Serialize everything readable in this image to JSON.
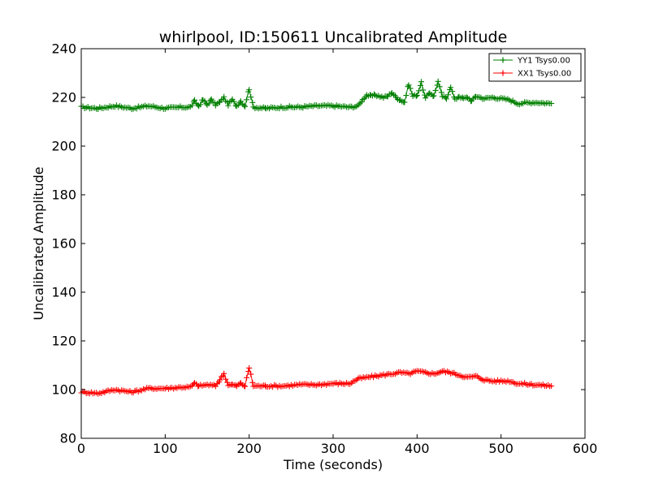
{
  "chart_data": {
    "type": "line",
    "title": "whirlpool, ID:150611 Uncalibrated Amplitude",
    "xlabel": "Time (seconds)",
    "ylabel": "Uncalibrated Amplitude",
    "xlim": [
      0,
      600
    ],
    "ylim": [
      80,
      240
    ],
    "xticks": [
      0,
      100,
      200,
      300,
      400,
      500,
      600
    ],
    "yticks": [
      80,
      100,
      120,
      140,
      160,
      180,
      200,
      220,
      240
    ],
    "grid": false,
    "legend_position": "top-right",
    "marker": "+",
    "series": [
      {
        "name": "YY1 Tsys0.00",
        "color": "#008000",
        "points": [
          [
            0,
            216
          ],
          [
            20,
            215.5
          ],
          [
            40,
            216.5
          ],
          [
            60,
            215.5
          ],
          [
            80,
            216.5
          ],
          [
            100,
            215.5
          ],
          [
            120,
            216
          ],
          [
            130,
            216
          ],
          [
            135,
            218.5
          ],
          [
            140,
            216.5
          ],
          [
            145,
            219
          ],
          [
            150,
            217
          ],
          [
            155,
            219
          ],
          [
            160,
            217
          ],
          [
            165,
            218
          ],
          [
            170,
            220
          ],
          [
            175,
            217
          ],
          [
            180,
            219
          ],
          [
            185,
            216.5
          ],
          [
            190,
            218.5
          ],
          [
            195,
            216.5
          ],
          [
            200,
            223.5
          ],
          [
            205,
            216
          ],
          [
            220,
            215.5
          ],
          [
            240,
            216
          ],
          [
            260,
            216
          ],
          [
            280,
            216.5
          ],
          [
            300,
            216.5
          ],
          [
            320,
            216
          ],
          [
            330,
            216.5
          ],
          [
            335,
            219
          ],
          [
            340,
            221
          ],
          [
            345,
            220.5
          ],
          [
            350,
            221
          ],
          [
            360,
            220
          ],
          [
            365,
            220.5
          ],
          [
            370,
            222
          ],
          [
            375,
            220
          ],
          [
            380,
            219
          ],
          [
            385,
            218
          ],
          [
            390,
            225.5
          ],
          [
            395,
            220.5
          ],
          [
            400,
            221
          ],
          [
            405,
            226
          ],
          [
            410,
            219.5
          ],
          [
            415,
            222
          ],
          [
            420,
            220.5
          ],
          [
            425,
            226.5
          ],
          [
            430,
            220.5
          ],
          [
            435,
            219.5
          ],
          [
            440,
            224.5
          ],
          [
            445,
            219
          ],
          [
            450,
            220.5
          ],
          [
            455,
            219.5
          ],
          [
            460,
            220
          ],
          [
            465,
            218.5
          ],
          [
            470,
            220.5
          ],
          [
            480,
            219.5
          ],
          [
            490,
            220
          ],
          [
            500,
            219.5
          ],
          [
            510,
            219
          ],
          [
            520,
            217.5
          ],
          [
            540,
            218
          ],
          [
            560,
            217.5
          ]
        ]
      },
      {
        "name": "XX1 Tsys0.00",
        "color": "#ff0000",
        "points": [
          [
            0,
            99
          ],
          [
            20,
            98.5
          ],
          [
            40,
            100
          ],
          [
            60,
            99
          ],
          [
            80,
            100.5
          ],
          [
            100,
            100.5
          ],
          [
            120,
            101
          ],
          [
            130,
            101
          ],
          [
            135,
            102.5
          ],
          [
            140,
            101.5
          ],
          [
            150,
            102
          ],
          [
            160,
            101.5
          ],
          [
            165,
            104
          ],
          [
            170,
            106.5
          ],
          [
            175,
            102
          ],
          [
            180,
            102
          ],
          [
            185,
            101.5
          ],
          [
            190,
            102.5
          ],
          [
            195,
            101.5
          ],
          [
            200,
            109
          ],
          [
            205,
            101.5
          ],
          [
            220,
            101.5
          ],
          [
            240,
            101.5
          ],
          [
            260,
            102
          ],
          [
            280,
            102
          ],
          [
            300,
            102.5
          ],
          [
            320,
            102.5
          ],
          [
            330,
            104.5
          ],
          [
            340,
            105
          ],
          [
            350,
            105.5
          ],
          [
            360,
            106
          ],
          [
            370,
            106.5
          ],
          [
            380,
            107
          ],
          [
            390,
            106.5
          ],
          [
            400,
            107.5
          ],
          [
            410,
            107
          ],
          [
            420,
            106.5
          ],
          [
            430,
            107.5
          ],
          [
            440,
            107
          ],
          [
            450,
            106
          ],
          [
            460,
            105
          ],
          [
            470,
            105.5
          ],
          [
            480,
            104
          ],
          [
            490,
            103.5
          ],
          [
            500,
            103.5
          ],
          [
            510,
            103.5
          ],
          [
            520,
            102.5
          ],
          [
            540,
            102
          ],
          [
            560,
            101.5
          ]
        ]
      }
    ]
  }
}
